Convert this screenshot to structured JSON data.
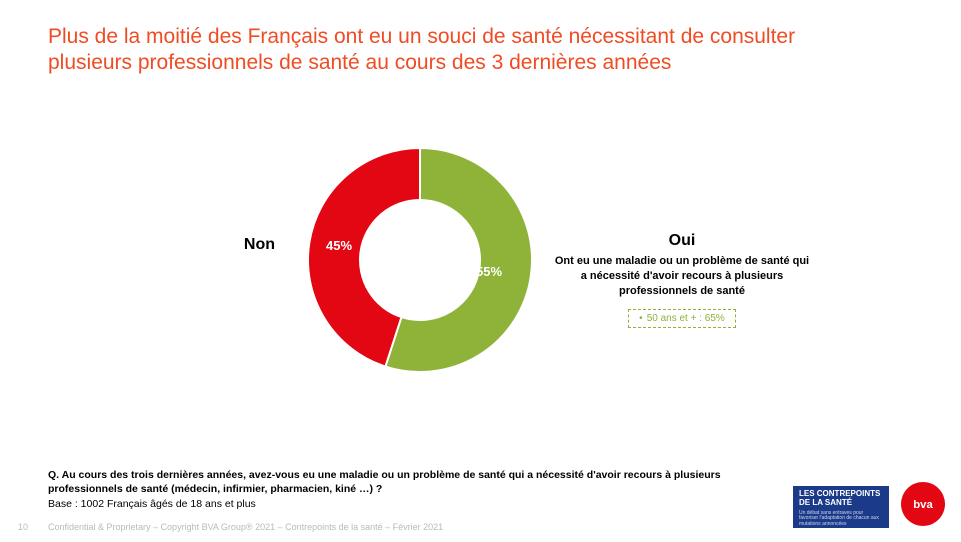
{
  "title": {
    "text": "Plus de la moitié des Français ont eu un souci de santé nécessitant de consulter plusieurs professionnels de santé au cours des 3 dernières années",
    "color": "#f04c23",
    "fontsize": 21
  },
  "chart": {
    "type": "donut",
    "background_color": "#ffffff",
    "inner_radius": 60,
    "outer_radius": 112,
    "slices": [
      {
        "key": "oui",
        "value": 55,
        "color": "#8fb339",
        "label_pct": "55%"
      },
      {
        "key": "non",
        "value": 45,
        "color": "#e30613",
        "label_pct": "45%"
      }
    ],
    "non_label": "Non",
    "oui": {
      "title": "Oui",
      "subtitle": "Ont eu une maladie ou un problème de santé qui a nécessité d'avoir recours à plusieurs professionnels de santé",
      "box_text": "50 ans et + : 65%",
      "box_border_color": "#8fb339",
      "box_text_color": "#8fb339"
    }
  },
  "question": "Q. Au cours des trois dernières années, avez-vous eu une maladie ou un problème de santé qui a nécessité d'avoir recours à plusieurs professionnels de santé (médecin, infirmier, pharmacien, kiné …) ?",
  "base": "Base : 1002 Français âgés de 18 ans et plus",
  "copyright": "Confidential & Proprietary – Copyright BVA Group® 2021 – Contrepoints de la santé – Février 2021",
  "page_number": "10",
  "logos": {
    "contrepoints": {
      "line1": "LES CONTREPOINTS",
      "line2": "DE LA SANTÉ",
      "tagline": "Un débat sans entraves pour favoriser l'adaptation de chacun aux mutations annoncées",
      "bg": "#1b3a8a"
    },
    "bva": {
      "text": "bva",
      "bg": "#e30613"
    }
  }
}
